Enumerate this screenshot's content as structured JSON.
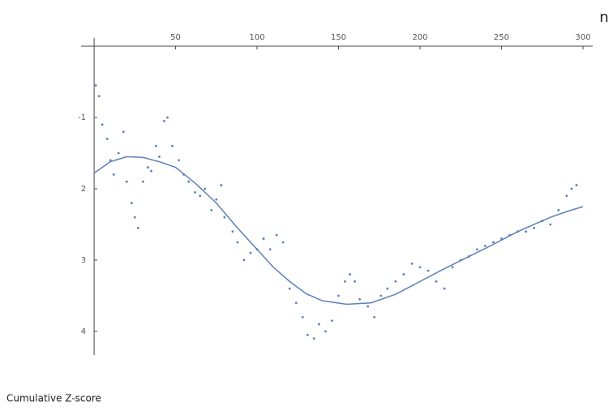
{
  "chart_data": {
    "type": "scatter",
    "x_label": "n",
    "y_label": "Cumulative Z-score",
    "xlim": [
      -8,
      306
    ],
    "ylim": [
      -4.33,
      0
    ],
    "xticks": [
      50,
      100,
      150,
      200,
      250,
      300
    ],
    "yticks": [
      {
        "value": -1,
        "label": "-1"
      },
      {
        "value": -2,
        "label": "2"
      },
      {
        "value": -3,
        "label": "3"
      },
      {
        "value": -4,
        "label": "4"
      }
    ],
    "series": [
      {
        "type": "scatter",
        "color": "#5b7fb8",
        "x": [
          1,
          3,
          5,
          8,
          10,
          12,
          15,
          18,
          20,
          23,
          25,
          27,
          30,
          33,
          35,
          38,
          40,
          43,
          45,
          48,
          52,
          55,
          58,
          62,
          65,
          68,
          72,
          75,
          78,
          80,
          85,
          88,
          92,
          96,
          100,
          104,
          108,
          112,
          116,
          120,
          124,
          128,
          131,
          135,
          138,
          142,
          146,
          150,
          154,
          157,
          160,
          163,
          168,
          172,
          176,
          180,
          185,
          190,
          195,
          200,
          205,
          210,
          215,
          220,
          225,
          230,
          235,
          240,
          245,
          250,
          255,
          260,
          265,
          270,
          275,
          280,
          285,
          290,
          293,
          296
        ],
        "values": [
          -0.55,
          -0.7,
          -1.1,
          -1.3,
          -1.6,
          -1.8,
          -1.5,
          -1.2,
          -1.9,
          -2.2,
          -2.4,
          -2.55,
          -1.9,
          -1.7,
          -1.75,
          -1.4,
          -1.55,
          -1.05,
          -1.0,
          -1.4,
          -1.6,
          -1.8,
          -1.9,
          -2.05,
          -2.1,
          -2.0,
          -2.3,
          -2.15,
          -1.95,
          -2.4,
          -2.6,
          -2.75,
          -3.0,
          -2.9,
          -2.85,
          -2.7,
          -2.85,
          -2.65,
          -2.75,
          -3.4,
          -3.6,
          -3.8,
          -4.05,
          -4.1,
          -3.9,
          -4.0,
          -3.85,
          -3.5,
          -3.3,
          -3.2,
          -3.3,
          -3.55,
          -3.65,
          -3.8,
          -3.5,
          -3.4,
          -3.3,
          -3.2,
          -3.05,
          -3.1,
          -3.15,
          -3.3,
          -3.4,
          -3.1,
          -3.0,
          -2.95,
          -2.85,
          -2.8,
          -2.75,
          -2.7,
          -2.65,
          -2.6,
          -2.6,
          -2.55,
          -2.45,
          -2.5,
          -2.3,
          -2.1,
          -2.0,
          -1.95
        ]
      },
      {
        "type": "line",
        "color": "#5b7fb8",
        "x": [
          0,
          10,
          20,
          30,
          40,
          50,
          62,
          75,
          88,
          100,
          110,
          120,
          130,
          140,
          155,
          170,
          185,
          200,
          215,
          230,
          245,
          260,
          270,
          280,
          290,
          300
        ],
        "values": [
          -1.78,
          -1.62,
          -1.55,
          -1.56,
          -1.62,
          -1.7,
          -1.92,
          -2.2,
          -2.55,
          -2.85,
          -3.1,
          -3.3,
          -3.47,
          -3.57,
          -3.62,
          -3.6,
          -3.48,
          -3.3,
          -3.12,
          -2.95,
          -2.78,
          -2.6,
          -2.5,
          -2.4,
          -2.32,
          -2.25
        ]
      }
    ]
  }
}
